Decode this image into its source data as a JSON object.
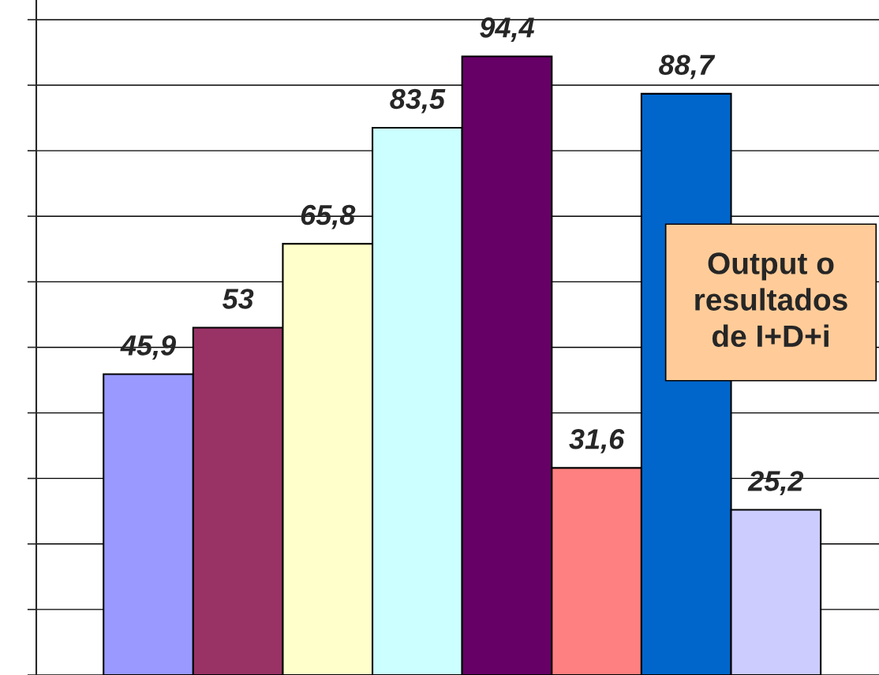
{
  "chart_data": {
    "type": "bar",
    "categories": [
      null,
      null,
      null,
      null,
      null,
      null,
      null,
      null
    ],
    "values": [
      45.9,
      53,
      65.8,
      83.5,
      94.4,
      31.6,
      88.7,
      25.2
    ],
    "colors": [
      "#9999ff",
      "#993366",
      "#ffffcc",
      "#ccffff",
      "#660066",
      "#ff8080",
      "#0066cc",
      "#ccccff"
    ],
    "value_labels": [
      "45,9",
      "53",
      "65,8",
      "83,5",
      "94,4",
      "31,6",
      "88,7",
      "25,2"
    ],
    "ylim": [
      0,
      103
    ],
    "yticks": [
      {
        "value": 0,
        "label": null
      },
      {
        "value": 10,
        "label": null
      },
      {
        "value": 20,
        "label": null
      },
      {
        "value": 30,
        "label": null
      },
      {
        "value": 40,
        "label": null
      },
      {
        "value": 50,
        "label": null
      },
      {
        "value": 60,
        "label": null
      },
      {
        "value": 70,
        "label": null
      },
      {
        "value": 80,
        "label": null
      },
      {
        "value": 90,
        "label": null
      },
      {
        "value": 100,
        "label": null
      }
    ],
    "grid": "y",
    "annotations": [
      "Output o\nresultados\nde I+D+i"
    ]
  }
}
